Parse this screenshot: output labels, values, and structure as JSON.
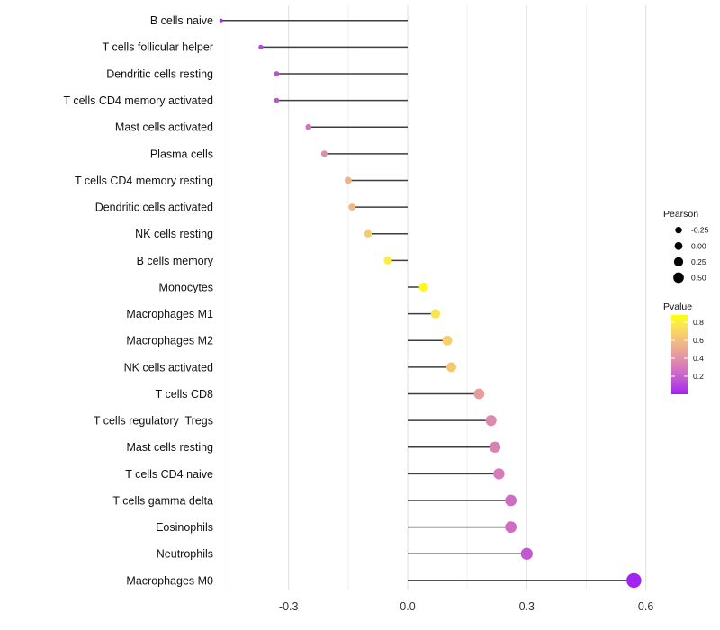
{
  "chart_data": {
    "type": "lollipop",
    "title": "",
    "xlabel": "",
    "ylabel": "",
    "x_ticks": [
      -0.3,
      0.0,
      0.3,
      0.6
    ],
    "x_tick_labels": [
      "-0.3",
      "0.0",
      "0.3",
      "0.6"
    ],
    "x_minor_ticks": [
      -0.45,
      -0.15,
      0.15,
      0.45
    ],
    "xlim": [
      -0.5,
      0.65
    ],
    "grid": "vertical-only",
    "legend_position": "right",
    "rows": [
      {
        "label": "B cells naive",
        "pearson": -0.47,
        "pvalue": 0.03
      },
      {
        "label": "T cells follicular helper",
        "pearson": -0.37,
        "pvalue": 0.1
      },
      {
        "label": "Dendritic cells resting",
        "pearson": -0.33,
        "pvalue": 0.13
      },
      {
        "label": "T cells CD4 memory activated",
        "pearson": -0.33,
        "pvalue": 0.14
      },
      {
        "label": "Mast cells activated",
        "pearson": -0.25,
        "pvalue": 0.27
      },
      {
        "label": "Plasma cells",
        "pearson": -0.21,
        "pvalue": 0.38
      },
      {
        "label": "T cells CD4 memory resting",
        "pearson": -0.15,
        "pvalue": 0.55
      },
      {
        "label": "Dendritic cells activated",
        "pearson": -0.14,
        "pvalue": 0.57
      },
      {
        "label": "NK cells resting",
        "pearson": -0.1,
        "pvalue": 0.65
      },
      {
        "label": "B cells memory",
        "pearson": -0.05,
        "pvalue": 0.8
      },
      {
        "label": "Monocytes",
        "pearson": 0.04,
        "pvalue": 0.86
      },
      {
        "label": "Macrophages M1",
        "pearson": 0.07,
        "pvalue": 0.76
      },
      {
        "label": "Macrophages M2",
        "pearson": 0.1,
        "pvalue": 0.67
      },
      {
        "label": "NK cells activated",
        "pearson": 0.11,
        "pvalue": 0.64
      },
      {
        "label": "T cells CD8",
        "pearson": 0.18,
        "pvalue": 0.45
      },
      {
        "label": "T cells regulatory  Tregs",
        "pearson": 0.21,
        "pvalue": 0.36
      },
      {
        "label": "Mast cells resting",
        "pearson": 0.22,
        "pvalue": 0.33
      },
      {
        "label": "T cells CD4 naive",
        "pearson": 0.23,
        "pvalue": 0.31
      },
      {
        "label": "T cells gamma delta",
        "pearson": 0.26,
        "pvalue": 0.25
      },
      {
        "label": "Eosinophils",
        "pearson": 0.26,
        "pvalue": 0.25
      },
      {
        "label": "Neutrophils",
        "pearson": 0.3,
        "pvalue": 0.17
      },
      {
        "label": "Macrophages M0",
        "pearson": 0.57,
        "pvalue": 0.008
      }
    ],
    "legend": {
      "size": {
        "title": "Pearson",
        "values": [
          -0.25,
          0.0,
          0.25,
          0.5
        ],
        "labels": [
          "-0.25",
          "0.00",
          "0.25",
          "0.50"
        ],
        "dot_color": "#000000"
      },
      "color": {
        "title": "Pvalue",
        "tick_values": [
          0.8,
          0.6,
          0.4,
          0.2
        ],
        "tick_labels": [
          "0.8",
          "0.6",
          "0.4",
          "0.2"
        ],
        "range": [
          0.0,
          0.88
        ],
        "low_color": "#A020F0",
        "high_color": "#FFFF00"
      }
    },
    "colors": {
      "background": "#ffffff",
      "segment": "#3d3d3d",
      "gridline_major": "#e4e4e4",
      "gridline_minor": "#f2f2f2",
      "axis_text": "#333333",
      "category_text": "#111111",
      "legend_text": "#111111"
    }
  }
}
